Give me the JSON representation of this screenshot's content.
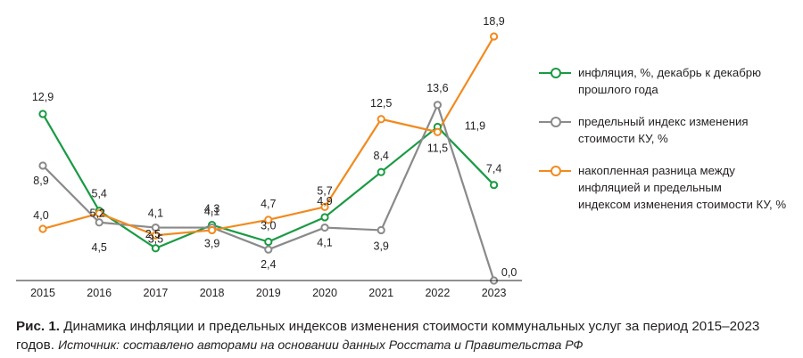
{
  "colors": {
    "inflation": "#1a9a43",
    "limit": "#8a8a8a",
    "accumulated": "#f28a1e",
    "axis": "#231f20"
  },
  "chart_data": {
    "type": "line",
    "x": [
      "2015",
      "2016",
      "2017",
      "2018",
      "2019",
      "2020",
      "2021",
      "2022",
      "2023"
    ],
    "series": [
      {
        "name": "инфляция, %, декабрь к декабрю прошлого года",
        "color": "#1a9a43",
        "values": [
          12.9,
          5.4,
          2.5,
          4.3,
          3.0,
          4.9,
          8.4,
          11.9,
          7.4
        ],
        "labels": [
          "12,9",
          "5,4",
          "2,5",
          "4,3",
          "3,0",
          "4,9",
          "8,4",
          "11,9",
          "7,4"
        ]
      },
      {
        "name": "предельный индекс изменения стоимости КУ, %",
        "color": "#8a8a8a",
        "values": [
          8.9,
          4.5,
          4.1,
          4.1,
          2.4,
          4.1,
          3.9,
          13.6,
          0.0
        ],
        "labels": [
          "8,9",
          "4,5",
          "4,1",
          "4,1",
          "2,4",
          "4,1",
          "3,9",
          "13,6",
          "0,0"
        ]
      },
      {
        "name": "накопленная разница между инфляцией и предельным индексом изменения стоимости КУ, %",
        "color": "#f28a1e",
        "values": [
          4.0,
          5.2,
          3.5,
          3.9,
          4.7,
          5.7,
          12.5,
          11.5,
          18.9
        ],
        "labels": [
          "4,0",
          "5,2",
          "3,5",
          "3,9",
          "4,7",
          "5,7",
          "12,5",
          "11,5",
          "18,9"
        ]
      }
    ],
    "ylim": [
      0,
      20
    ],
    "grid": false,
    "legend_position": "right"
  },
  "legend": [
    {
      "text_line1": "инфляция, %, декабрь к декабрю",
      "text_line2": "прошлого года",
      "color": "#1a9a43"
    },
    {
      "text_line1": "предельный индекс изменения",
      "text_line2": "стоимости КУ, %",
      "color": "#8a8a8a"
    },
    {
      "text_line1": "накопленная разница между",
      "text_line2": "инфляцией и предельным",
      "text_line3": "индексом изменения стоимости КУ, %",
      "color": "#f28a1e"
    }
  ],
  "caption": {
    "fig_label": "Рис. 1.",
    "title": "Динамика инфляции и предельных индексов изменения стоимости коммунальных услуг за период 2015–2023 годов.",
    "source": "Источник: составлено авторами на основании данных Росстата и Правительства РФ"
  }
}
